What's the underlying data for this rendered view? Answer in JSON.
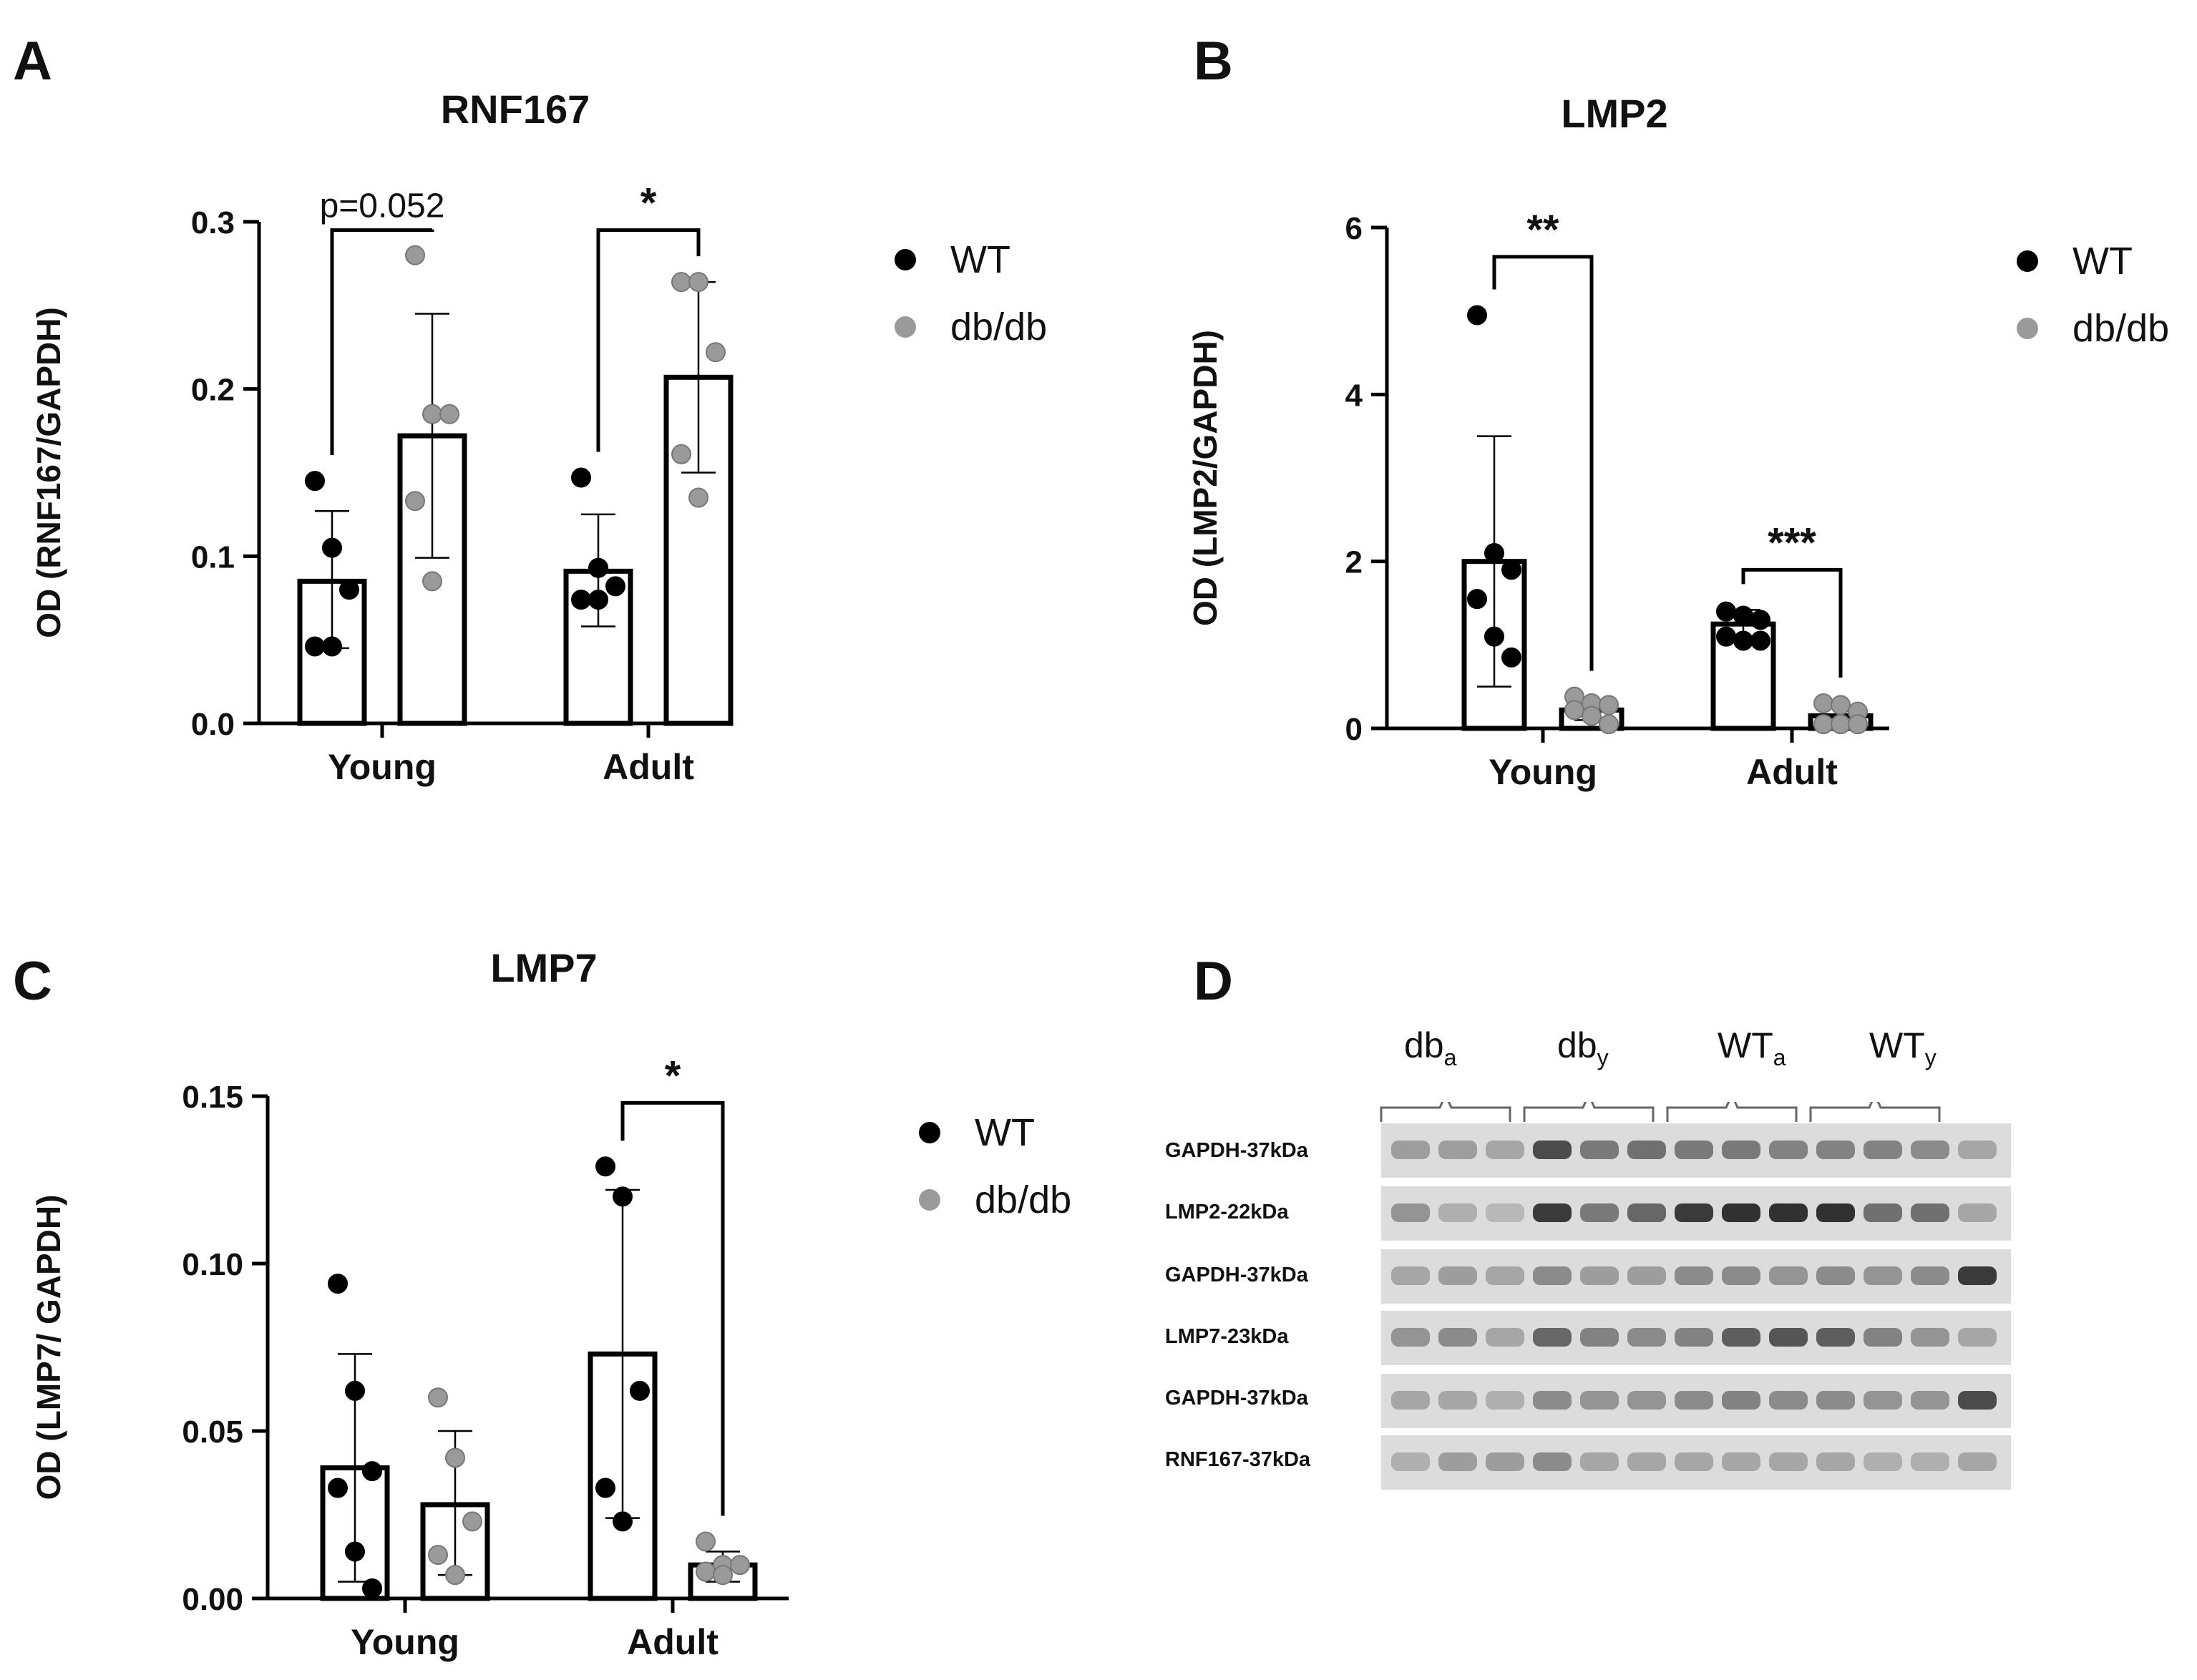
{
  "panels": {
    "A": "A",
    "B": "B",
    "C": "C",
    "D": "D"
  },
  "legend": {
    "wt_label": "WT",
    "db_label": "db/db"
  },
  "colors": {
    "wt": "#000000",
    "db": "#9a9a9a",
    "bar_stroke": "#000000",
    "bar_fill": "#ffffff"
  },
  "chart_data": [
    {
      "id": "A",
      "type": "bar",
      "title": "RNF167",
      "ylabel": "OD (RNF167/GAPDH)",
      "xlabel": "",
      "categories": [
        "Young",
        "Adult"
      ],
      "ylim": [
        0,
        0.3
      ],
      "yticks": [
        "0.0",
        "0.1",
        "0.2",
        "0.3"
      ],
      "ytick_values": [
        0,
        0.1,
        0.2,
        0.3
      ],
      "series": [
        {
          "name": "WT",
          "values": [
            0.085,
            0.091
          ],
          "err_low": [
            0.045,
            0.058
          ],
          "err_high": [
            0.127,
            0.125
          ],
          "points": [
            [
              0.145,
              0.105,
              0.08,
              0.046,
              0.046
            ],
            [
              0.147,
              0.093,
              0.082,
              0.074,
              0.074
            ]
          ]
        },
        {
          "name": "db/db",
          "values": [
            0.172,
            0.207
          ],
          "err_low": [
            0.099,
            0.15
          ],
          "err_high": [
            0.245,
            0.264
          ],
          "points": [
            [
              0.28,
              0.185,
              0.185,
              0.133,
              0.085
            ],
            [
              0.264,
              0.264,
              0.222,
              0.161,
              0.135
            ]
          ]
        }
      ],
      "annotations": [
        {
          "category": 0,
          "text": "p=0.052",
          "y_level": 0.295,
          "bold": false
        },
        {
          "category": 1,
          "text": "*",
          "y_level": 0.295,
          "bold": true
        }
      ]
    },
    {
      "id": "B",
      "type": "bar",
      "title": "LMP2",
      "ylabel": "OD (LMP2/GAPDH)",
      "xlabel": "",
      "categories": [
        "Young",
        "Adult"
      ],
      "ylim": [
        0,
        6
      ],
      "yticks": [
        "0",
        "2",
        "4",
        "6"
      ],
      "ytick_values": [
        0,
        2,
        4,
        6
      ],
      "series": [
        {
          "name": "WT",
          "values": [
            2.0,
            1.25
          ],
          "err_low": [
            0.5,
            1.1
          ],
          "err_high": [
            3.5,
            1.42
          ],
          "points": [
            [
              4.95,
              2.1,
              1.9,
              1.55,
              1.1,
              0.85
            ],
            [
              1.4,
              1.35,
              1.3,
              1.1,
              1.05,
              1.05
            ]
          ]
        },
        {
          "name": "db/db",
          "values": [
            0.22,
            0.15
          ],
          "err_low": [
            0.1,
            0.08
          ],
          "err_high": [
            0.34,
            0.24
          ],
          "points": [
            [
              0.38,
              0.3,
              0.28,
              0.22,
              0.15,
              0.05
            ],
            [
              0.3,
              0.28,
              0.2,
              0.05,
              0.05,
              0.05
            ]
          ]
        }
      ],
      "annotations": [
        {
          "category": 0,
          "text": "**",
          "y_level": 5.65,
          "bold": true
        },
        {
          "category": 1,
          "text": "***",
          "y_level": 1.9,
          "bold": true
        }
      ]
    },
    {
      "id": "C",
      "type": "bar",
      "title": "LMP7",
      "ylabel": "OD (LMP7/ GAPDH)",
      "xlabel": "",
      "categories": [
        "Young",
        "Adult"
      ],
      "ylim": [
        0,
        0.15
      ],
      "yticks": [
        "0.00",
        "0.05",
        "0.10",
        "0.15"
      ],
      "ytick_values": [
        0,
        0.05,
        0.1,
        0.15
      ],
      "series": [
        {
          "name": "WT",
          "values": [
            0.039,
            0.073
          ],
          "err_low": [
            0.005,
            0.024
          ],
          "err_high": [
            0.073,
            0.122
          ],
          "points": [
            [
              0.094,
              0.062,
              0.038,
              0.033,
              0.014,
              0.003
            ],
            [
              0.129,
              0.12,
              0.062,
              0.033,
              0.023
            ]
          ]
        },
        {
          "name": "db/db",
          "values": [
            0.028,
            0.01
          ],
          "err_low": [
            0.007,
            0.005
          ],
          "err_high": [
            0.05,
            0.014
          ],
          "points": [
            [
              0.06,
              0.042,
              0.023,
              0.013,
              0.007
            ],
            [
              0.017,
              0.01,
              0.01,
              0.008,
              0.007
            ]
          ]
        }
      ],
      "annotations": [
        {
          "category": 1,
          "text": "*",
          "y_level": 0.148,
          "bold": true
        }
      ]
    }
  ],
  "blot": {
    "groups": [
      {
        "main": "db",
        "sub": "a"
      },
      {
        "main": "db",
        "sub": "y"
      },
      {
        "main": "WT",
        "sub": "a"
      },
      {
        "main": "WT",
        "sub": "y"
      }
    ],
    "rows": [
      "GAPDH-37kDa",
      "LMP2-22kDa",
      "GAPDH-37kDa",
      "LMP7-23kDa",
      "GAPDH-37kDa",
      "RNF167-37kDa"
    ]
  }
}
